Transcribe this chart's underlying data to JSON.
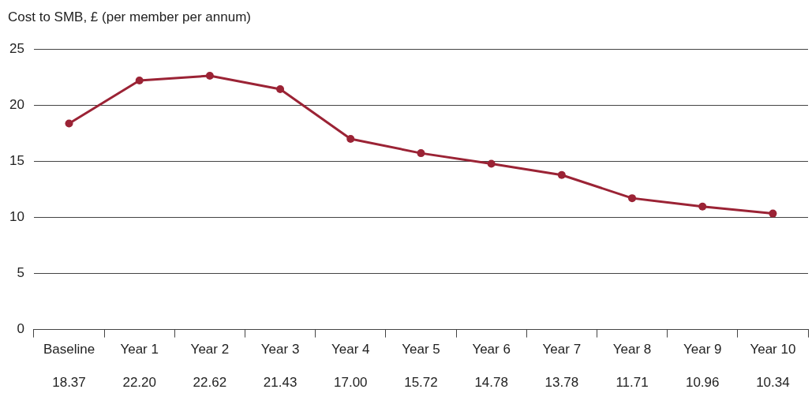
{
  "chart_data": {
    "type": "line",
    "ylabel": "Cost to SMB, £ (per member per annum)",
    "categories": [
      "Baseline",
      "Year 1",
      "Year 2",
      "Year 3",
      "Year 4",
      "Year 5",
      "Year 6",
      "Year 7",
      "Year 8",
      "Year 9",
      "Year 10"
    ],
    "series": [
      {
        "color": "#9b2335",
        "values": [
          18.37,
          22.2,
          22.62,
          21.43,
          17.0,
          15.72,
          14.78,
          13.78,
          11.71,
          10.96,
          10.34
        ],
        "value_labels": [
          "18.37",
          "22.20",
          "22.62",
          "21.43",
          "17.00",
          "15.72",
          "14.78",
          "13.78",
          "11.71",
          "10.96",
          "10.34"
        ]
      }
    ],
    "ylim": [
      0,
      25
    ],
    "yticks": [
      0,
      5,
      10,
      15,
      20,
      25
    ],
    "grid": "y",
    "legend": false,
    "marker": "circle",
    "line_style": "solid"
  }
}
